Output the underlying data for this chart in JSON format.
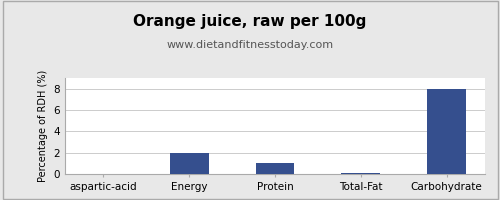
{
  "title": "Orange juice, raw per 100g",
  "subtitle": "www.dietandfitnesstoday.com",
  "categories": [
    "aspartic-acid",
    "Energy",
    "Protein",
    "Total-Fat",
    "Carbohydrate"
  ],
  "values": [
    0.0,
    2.0,
    1.0,
    0.05,
    8.0
  ],
  "bar_color": "#354f8e",
  "ylabel": "Percentage of RDH (%)",
  "ylim": [
    0,
    9
  ],
  "yticks": [
    0,
    2,
    4,
    6,
    8
  ],
  "background_color": "#e8e8e8",
  "plot_background": "#ffffff",
  "title_fontsize": 11,
  "subtitle_fontsize": 8,
  "ylabel_fontsize": 7,
  "xlabel_fontsize": 7.5,
  "grid_color": "#cccccc",
  "spine_color": "#aaaaaa"
}
